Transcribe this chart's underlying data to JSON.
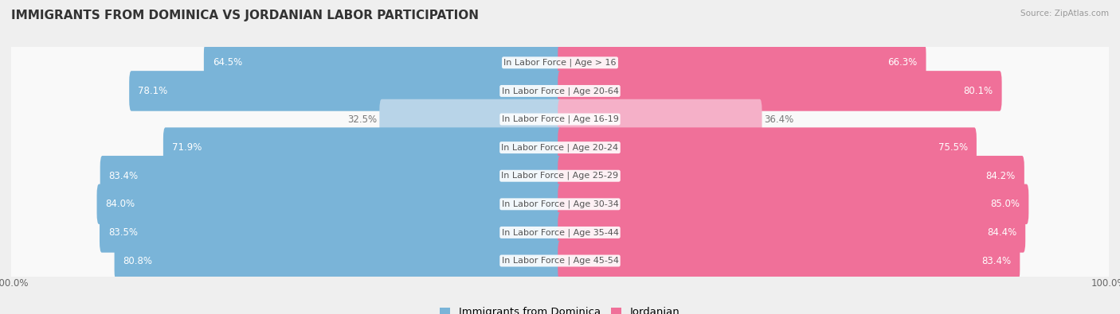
{
  "title": "IMMIGRANTS FROM DOMINICA VS JORDANIAN LABOR PARTICIPATION",
  "source": "Source: ZipAtlas.com",
  "categories": [
    "In Labor Force | Age > 16",
    "In Labor Force | Age 20-64",
    "In Labor Force | Age 16-19",
    "In Labor Force | Age 20-24",
    "In Labor Force | Age 25-29",
    "In Labor Force | Age 30-34",
    "In Labor Force | Age 35-44",
    "In Labor Force | Age 45-54"
  ],
  "dominica_values": [
    64.5,
    78.1,
    32.5,
    71.9,
    83.4,
    84.0,
    83.5,
    80.8
  ],
  "jordanian_values": [
    66.3,
    80.1,
    36.4,
    75.5,
    84.2,
    85.0,
    84.4,
    83.4
  ],
  "dominica_color": "#7ab4d8",
  "dominica_color_light": "#b8d4e8",
  "jordanian_color": "#f07099",
  "jordanian_color_light": "#f5b0c8",
  "bar_height": 0.62,
  "background_color": "#efefef",
  "row_bg_color": "#f9f9f9",
  "row_bg_dark": "#e8e8e8",
  "max_value": 100.0,
  "title_fontsize": 11,
  "label_fontsize": 8.5,
  "tick_fontsize": 8.5,
  "legend_fontsize": 9.5,
  "category_fontsize": 8.0,
  "source_fontsize": 7.5
}
